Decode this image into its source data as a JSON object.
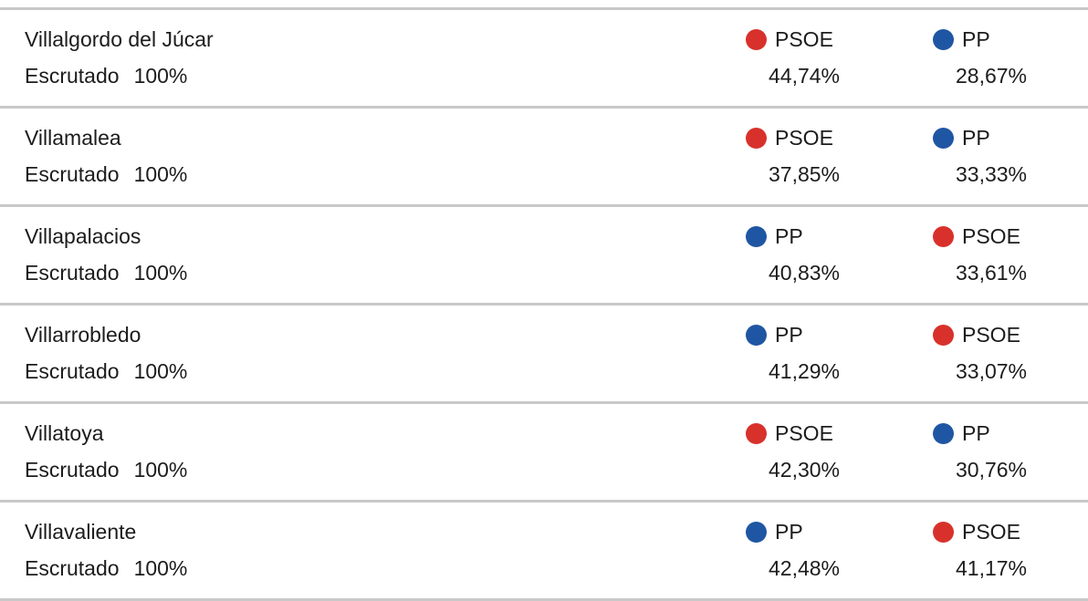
{
  "colors": {
    "PSOE": "#d8312b",
    "PP": "#1f56a3"
  },
  "rows": [
    {
      "municipality": "Villalgordo del Júcar",
      "scrutinized_label": "Escrutado",
      "scrutinized_pct": "100%",
      "parties": [
        {
          "name": "PSOE",
          "pct": "44,74%"
        },
        {
          "name": "PP",
          "pct": "28,67%"
        }
      ]
    },
    {
      "municipality": "Villamalea",
      "scrutinized_label": "Escrutado",
      "scrutinized_pct": "100%",
      "parties": [
        {
          "name": "PSOE",
          "pct": "37,85%"
        },
        {
          "name": "PP",
          "pct": "33,33%"
        }
      ]
    },
    {
      "municipality": "Villapalacios",
      "scrutinized_label": "Escrutado",
      "scrutinized_pct": "100%",
      "parties": [
        {
          "name": "PP",
          "pct": "40,83%"
        },
        {
          "name": "PSOE",
          "pct": "33,61%"
        }
      ]
    },
    {
      "municipality": "Villarrobledo",
      "scrutinized_label": "Escrutado",
      "scrutinized_pct": "100%",
      "parties": [
        {
          "name": "PP",
          "pct": "41,29%"
        },
        {
          "name": "PSOE",
          "pct": "33,07%"
        }
      ]
    },
    {
      "municipality": "Villatoya",
      "scrutinized_label": "Escrutado",
      "scrutinized_pct": "100%",
      "parties": [
        {
          "name": "PSOE",
          "pct": "42,30%"
        },
        {
          "name": "PP",
          "pct": "30,76%"
        }
      ]
    },
    {
      "municipality": "Villavaliente",
      "scrutinized_label": "Escrutado",
      "scrutinized_pct": "100%",
      "parties": [
        {
          "name": "PP",
          "pct": "42,48%"
        },
        {
          "name": "PSOE",
          "pct": "41,17%"
        }
      ]
    }
  ]
}
